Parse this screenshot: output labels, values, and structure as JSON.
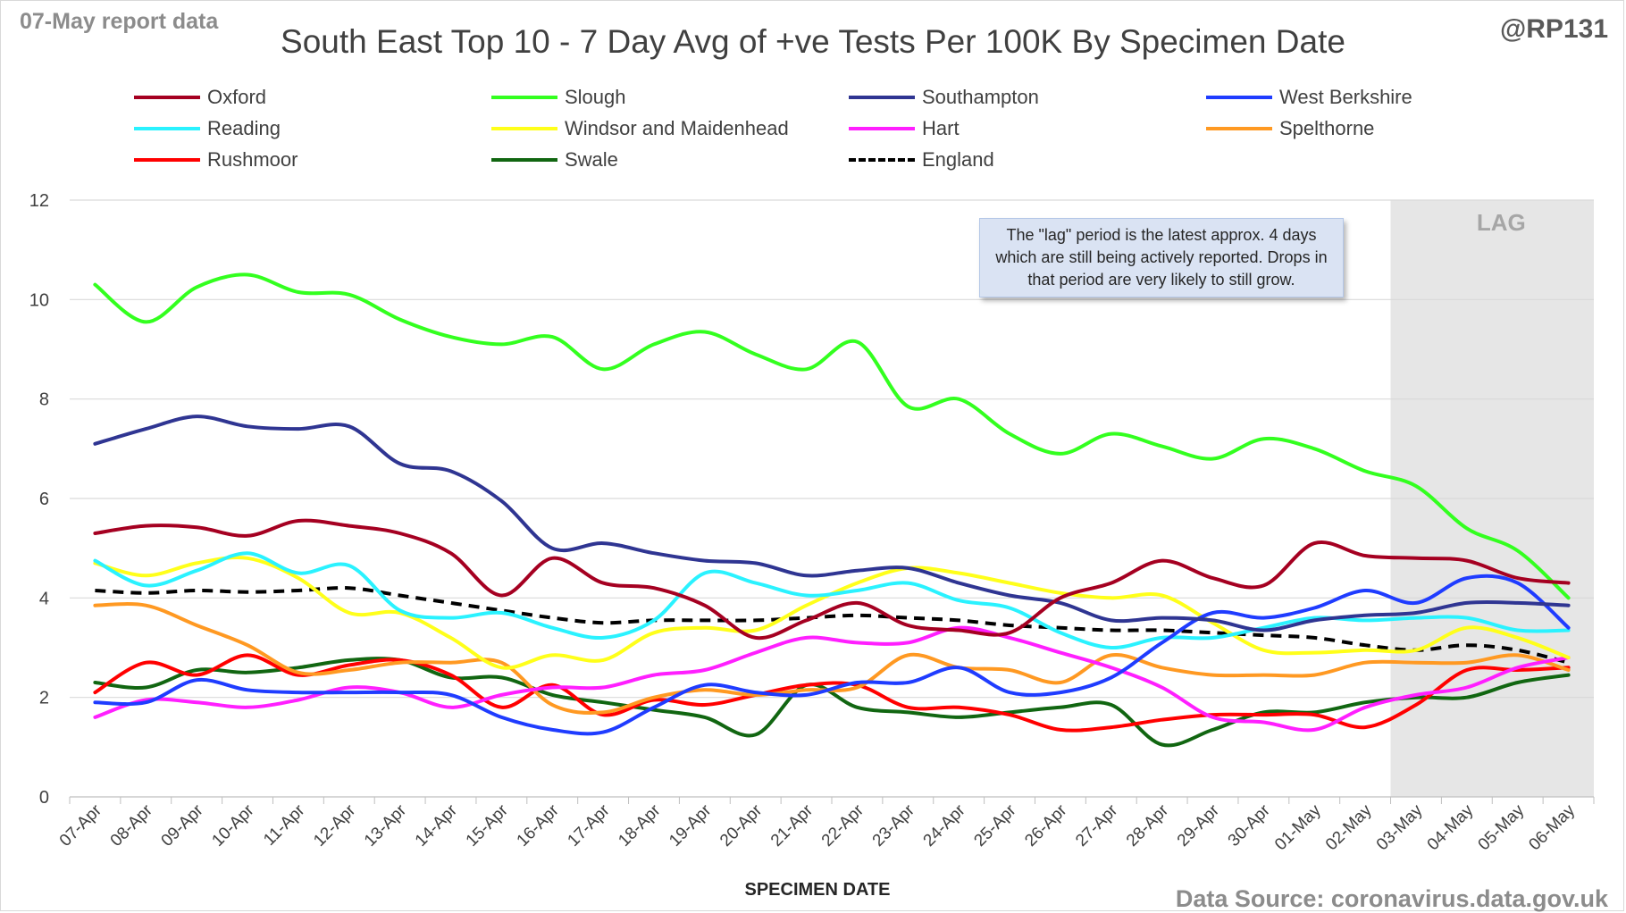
{
  "header": {
    "report_label": "07-May report data",
    "handle": "@RP131",
    "source": "Data Source: coronavirus.data.gov.uk"
  },
  "annotation": {
    "lag_note": "The \"lag\" period is the latest approx. 4 days which are still being actively reported.  Drops in that period are very likely to still grow.",
    "lag_label": "LAG"
  },
  "colors": {
    "Oxford": "#a50021",
    "Slough": "#33ff1f",
    "Southampton": "#2f3592",
    "West Berkshire": "#1f3cff",
    "Reading": "#2af2ff",
    "Windsor and Maidenhead": "#ffff1a",
    "Hart": "#ff1fff",
    "Spelthorne": "#ff9922",
    "Rushmoor": "#ff0000",
    "Swale": "#116611",
    "England": "#000000",
    "lag_shade": "#e6e6e6"
  },
  "chart_data": {
    "type": "line",
    "title": "South East Top 10 - 7 Day Avg of +ve Tests Per 100K By Specimen Date",
    "xlabel": "SPECIMEN DATE",
    "ylabel": "",
    "ylim": [
      0,
      12
    ],
    "yticks": [
      0,
      2,
      4,
      6,
      8,
      10,
      12
    ],
    "grid": true,
    "legend_position": "top",
    "lag_period": [
      "03-May",
      "06-May"
    ],
    "x": [
      "07-Apr",
      "08-Apr",
      "09-Apr",
      "10-Apr",
      "11-Apr",
      "12-Apr",
      "13-Apr",
      "14-Apr",
      "15-Apr",
      "16-Apr",
      "17-Apr",
      "18-Apr",
      "19-Apr",
      "20-Apr",
      "21-Apr",
      "22-Apr",
      "23-Apr",
      "24-Apr",
      "25-Apr",
      "26-Apr",
      "27-Apr",
      "28-Apr",
      "29-Apr",
      "30-Apr",
      "01-May",
      "02-May",
      "03-May",
      "04-May",
      "05-May",
      "06-May"
    ],
    "series": [
      {
        "name": "Oxford",
        "style": "solid",
        "values": [
          5.3,
          5.45,
          5.42,
          5.25,
          5.55,
          5.45,
          5.3,
          4.9,
          4.05,
          4.8,
          4.3,
          4.2,
          3.85,
          3.2,
          3.55,
          3.9,
          3.45,
          3.35,
          3.3,
          4.0,
          4.3,
          4.75,
          4.4,
          4.25,
          5.1,
          4.85,
          4.8,
          4.75,
          4.4,
          4.3
        ]
      },
      {
        "name": "Slough",
        "style": "solid",
        "values": [
          10.3,
          9.55,
          10.25,
          10.5,
          10.15,
          10.1,
          9.6,
          9.25,
          9.1,
          9.25,
          8.6,
          9.1,
          9.35,
          8.9,
          8.6,
          9.15,
          7.85,
          8.0,
          7.3,
          6.9,
          7.3,
          7.05,
          6.8,
          7.2,
          7.0,
          6.55,
          6.25,
          5.4,
          4.95,
          4.0
        ]
      },
      {
        "name": "Southampton",
        "style": "solid",
        "values": [
          7.1,
          7.4,
          7.65,
          7.45,
          7.4,
          7.45,
          6.7,
          6.55,
          5.95,
          5.0,
          5.1,
          4.9,
          4.75,
          4.7,
          4.45,
          4.55,
          4.6,
          4.3,
          4.05,
          3.9,
          3.55,
          3.6,
          3.55,
          3.35,
          3.55,
          3.65,
          3.7,
          3.9,
          3.9,
          3.85
        ]
      },
      {
        "name": "West Berkshire",
        "style": "solid",
        "values": [
          1.9,
          1.9,
          2.35,
          2.15,
          2.1,
          2.1,
          2.1,
          2.05,
          1.6,
          1.35,
          1.3,
          1.8,
          2.25,
          2.1,
          2.05,
          2.3,
          2.3,
          2.6,
          2.1,
          2.1,
          2.4,
          3.1,
          3.7,
          3.6,
          3.8,
          4.15,
          3.9,
          4.4,
          4.3,
          3.4
        ]
      },
      {
        "name": "Reading",
        "style": "solid",
        "values": [
          4.75,
          4.25,
          4.55,
          4.9,
          4.5,
          4.65,
          3.75,
          3.6,
          3.7,
          3.4,
          3.2,
          3.55,
          4.5,
          4.3,
          4.05,
          4.15,
          4.3,
          3.95,
          3.8,
          3.3,
          3.0,
          3.2,
          3.2,
          3.4,
          3.6,
          3.55,
          3.6,
          3.6,
          3.35,
          3.35
        ]
      },
      {
        "name": "Windsor and Maidenhead",
        "style": "solid",
        "values": [
          4.7,
          4.45,
          4.7,
          4.8,
          4.4,
          3.7,
          3.7,
          3.2,
          2.6,
          2.85,
          2.75,
          3.3,
          3.4,
          3.35,
          3.85,
          4.3,
          4.6,
          4.5,
          4.3,
          4.1,
          4.0,
          4.05,
          3.5,
          2.95,
          2.9,
          2.95,
          2.95,
          3.4,
          3.2,
          2.8
        ]
      },
      {
        "name": "Hart",
        "style": "solid",
        "values": [
          1.6,
          1.95,
          1.9,
          1.8,
          1.95,
          2.2,
          2.1,
          1.8,
          2.05,
          2.2,
          2.2,
          2.45,
          2.55,
          2.9,
          3.2,
          3.1,
          3.1,
          3.4,
          3.2,
          2.9,
          2.6,
          2.2,
          1.6,
          1.5,
          1.35,
          1.8,
          2.05,
          2.2,
          2.6,
          2.8
        ]
      },
      {
        "name": "Spelthorne",
        "style": "solid",
        "values": [
          3.85,
          3.85,
          3.45,
          3.05,
          2.5,
          2.55,
          2.7,
          2.7,
          2.7,
          1.85,
          1.7,
          2.0,
          2.15,
          2.05,
          2.15,
          2.2,
          2.85,
          2.6,
          2.55,
          2.3,
          2.85,
          2.6,
          2.45,
          2.45,
          2.45,
          2.7,
          2.7,
          2.7,
          2.85,
          2.55
        ]
      },
      {
        "name": "Rushmoor",
        "style": "solid",
        "values": [
          2.1,
          2.7,
          2.45,
          2.85,
          2.45,
          2.65,
          2.75,
          2.45,
          1.8,
          2.25,
          1.65,
          1.95,
          1.85,
          2.05,
          2.25,
          2.25,
          1.8,
          1.8,
          1.65,
          1.35,
          1.4,
          1.55,
          1.65,
          1.65,
          1.65,
          1.4,
          1.85,
          2.55,
          2.55,
          2.6
        ]
      },
      {
        "name": "Swale",
        "style": "solid",
        "values": [
          2.3,
          2.2,
          2.55,
          2.5,
          2.6,
          2.75,
          2.75,
          2.4,
          2.4,
          2.05,
          1.9,
          1.75,
          1.6,
          1.25,
          2.25,
          1.8,
          1.7,
          1.6,
          1.7,
          1.8,
          1.85,
          1.05,
          1.35,
          1.7,
          1.7,
          1.9,
          2.0,
          2.0,
          2.3,
          2.45
        ]
      },
      {
        "name": "England",
        "style": "dashed",
        "values": [
          4.15,
          4.1,
          4.15,
          4.12,
          4.15,
          4.2,
          4.05,
          3.9,
          3.75,
          3.6,
          3.5,
          3.55,
          3.55,
          3.55,
          3.6,
          3.65,
          3.6,
          3.55,
          3.45,
          3.4,
          3.35,
          3.35,
          3.3,
          3.25,
          3.2,
          3.05,
          2.95,
          3.05,
          2.95,
          2.7
        ]
      }
    ]
  }
}
